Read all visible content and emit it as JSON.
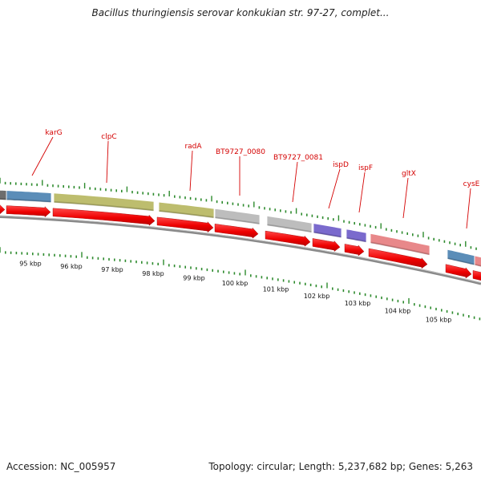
{
  "title": "Bacillus thuringiensis serovar konkukian str. 97-27, complet...",
  "footer": {
    "accession": "Accession: NC_005957",
    "topology": "Topology: circular; Length: 5,237,682 bp; Genes: 5,263"
  },
  "genes": [
    {
      "name": "karG",
      "color": "#5b8db8"
    },
    {
      "name": "clpC",
      "color": "#bdbd6e"
    },
    {
      "name": "radA",
      "color": "#bdbd6e"
    },
    {
      "name": "BT9727_0080",
      "color": "#bdbdbd"
    },
    {
      "name": "BT9727_0081",
      "color": "#bdbdbd"
    },
    {
      "name": "ispD",
      "color": "#7a6acd"
    },
    {
      "name": "ispF",
      "color": "#7a6acd"
    },
    {
      "name": "gltX",
      "color": "#e8888a"
    },
    {
      "name": "cysE",
      "color": "#5b8db8"
    }
  ],
  "scale_labels": [
    "95 kbp",
    "96 kbp",
    "97 kbp",
    "98 kbp",
    "99 kbp",
    "100 kbp",
    "101 kbp",
    "102 kbp",
    "103 kbp",
    "104 kbp",
    "105 kbp"
  ],
  "colors": {
    "label": "#d40000",
    "cds_arrow": "#ff0000",
    "tick": "#2e8b2e",
    "backbone": "#8a8a8a"
  }
}
